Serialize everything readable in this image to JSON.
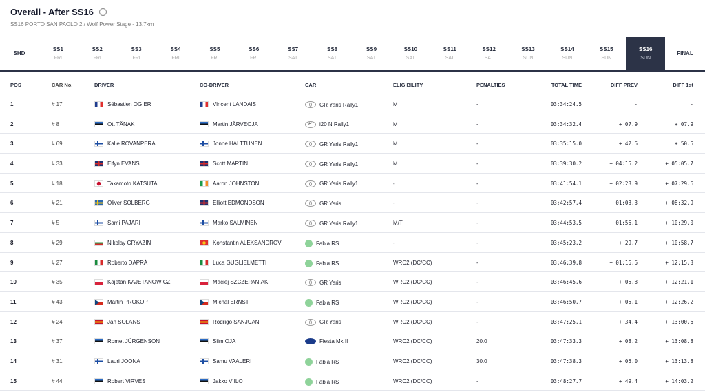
{
  "header": {
    "title": "Overall - After SS16",
    "subtitle": "SS16 PORTO SAN PAOLO 2 / Wolf Power Stage - 13.7km"
  },
  "stages": [
    {
      "n": "SHD",
      "d": ""
    },
    {
      "n": "SS1",
      "d": "FRI"
    },
    {
      "n": "SS2",
      "d": "FRI"
    },
    {
      "n": "SS3",
      "d": "FRI"
    },
    {
      "n": "SS4",
      "d": "FRI"
    },
    {
      "n": "SS5",
      "d": "FRI"
    },
    {
      "n": "SS6",
      "d": "FRI"
    },
    {
      "n": "SS7",
      "d": "SAT"
    },
    {
      "n": "SS8",
      "d": "SAT"
    },
    {
      "n": "SS9",
      "d": "SAT"
    },
    {
      "n": "SS10",
      "d": "SAT"
    },
    {
      "n": "SS11",
      "d": "SAT"
    },
    {
      "n": "SS12",
      "d": "SAT"
    },
    {
      "n": "SS13",
      "d": "SUN"
    },
    {
      "n": "SS14",
      "d": "SUN"
    },
    {
      "n": "SS15",
      "d": "SUN"
    },
    {
      "n": "SS16",
      "d": "SUN",
      "active": true
    },
    {
      "n": "FINAL",
      "d": ""
    }
  ],
  "columns": {
    "pos": "POS",
    "carno": "CAR No.",
    "driver": "DRIVER",
    "codriver": "CO-DRIVER",
    "car": "CAR",
    "elig": "ELIGIBILITY",
    "pen": "PENALTIES",
    "total": "TOTAL TIME",
    "dprev": "DIFF PREV",
    "dfirst": "DIFF 1st"
  },
  "rows": [
    {
      "pos": "1",
      "carno": "# 17",
      "driver": "Sébastien OGIER",
      "dflag": "fr",
      "codriver": "Vincent LANDAIS",
      "cflag": "fr",
      "car": "GR Yaris Rally1",
      "logo": "toyota",
      "elig": "M",
      "pen": "-",
      "total": "03:34:24.5",
      "dprev": "-",
      "dfirst": "-"
    },
    {
      "pos": "2",
      "carno": "# 8",
      "driver": "Ott TÄNAK",
      "dflag": "ee",
      "codriver": "Martin JÄRVEOJA",
      "cflag": "ee",
      "car": "i20 N Rally1",
      "logo": "hyundai",
      "elig": "M",
      "pen": "-",
      "total": "03:34:32.4",
      "dprev": "+ 07.9",
      "dfirst": "+ 07.9"
    },
    {
      "pos": "3",
      "carno": "# 69",
      "driver": "Kalle ROVANPERÄ",
      "dflag": "fi",
      "codriver": "Jonne HALTTUNEN",
      "cflag": "fi",
      "car": "GR Yaris Rally1",
      "logo": "toyota",
      "elig": "M",
      "pen": "-",
      "total": "03:35:15.0",
      "dprev": "+ 42.6",
      "dfirst": "+ 50.5"
    },
    {
      "pos": "4",
      "carno": "# 33",
      "driver": "Elfyn EVANS",
      "dflag": "gb",
      "codriver": "Scott MARTIN",
      "cflag": "gb",
      "car": "GR Yaris Rally1",
      "logo": "toyota",
      "elig": "M",
      "pen": "-",
      "total": "03:39:30.2",
      "dprev": "+ 04:15.2",
      "dfirst": "+ 05:05.7"
    },
    {
      "pos": "5",
      "carno": "# 18",
      "driver": "Takamoto KATSUTA",
      "dflag": "jp",
      "codriver": "Aaron JOHNSTON",
      "cflag": "ie",
      "car": "GR Yaris Rally1",
      "logo": "toyota",
      "elig": "-",
      "pen": "-",
      "total": "03:41:54.1",
      "dprev": "+ 02:23.9",
      "dfirst": "+ 07:29.6"
    },
    {
      "pos": "6",
      "carno": "# 21",
      "driver": "Oliver SOLBERG",
      "dflag": "se",
      "codriver": "Elliott EDMONDSON",
      "cflag": "gb",
      "car": "GR Yaris",
      "logo": "toyota",
      "elig": "-",
      "pen": "-",
      "total": "03:42:57.4",
      "dprev": "+ 01:03.3",
      "dfirst": "+ 08:32.9"
    },
    {
      "pos": "7",
      "carno": "# 5",
      "driver": "Sami PAJARI",
      "dflag": "fi",
      "codriver": "Marko SALMINEN",
      "cflag": "fi",
      "car": "GR Yaris Rally1",
      "logo": "toyota",
      "elig": "M/T",
      "pen": "-",
      "total": "03:44:53.5",
      "dprev": "+ 01:56.1",
      "dfirst": "+ 10:29.0"
    },
    {
      "pos": "8",
      "carno": "# 29",
      "driver": "Nikolay GRYAZIN",
      "dflag": "bg",
      "codriver": "Konstantin ALEKSANDROV",
      "cflag": "kg",
      "car": "Fabia RS",
      "logo": "skoda",
      "elig": "-",
      "pen": "-",
      "total": "03:45:23.2",
      "dprev": "+ 29.7",
      "dfirst": "+ 10:58.7"
    },
    {
      "pos": "9",
      "carno": "# 27",
      "driver": "Roberto DAPRÀ",
      "dflag": "it",
      "codriver": "Luca GUGLIELMETTI",
      "cflag": "it",
      "car": "Fabia RS",
      "logo": "skoda",
      "elig": "WRC2 (DC/CC)",
      "pen": "-",
      "total": "03:46:39.8",
      "dprev": "+ 01:16.6",
      "dfirst": "+ 12:15.3"
    },
    {
      "pos": "10",
      "carno": "# 35",
      "driver": "Kajetan KAJETANOWICZ",
      "dflag": "pl",
      "codriver": "Maciej SZCZEPANIAK",
      "cflag": "pl",
      "car": "GR Yaris",
      "logo": "toyota",
      "elig": "WRC2 (DC/CC)",
      "pen": "-",
      "total": "03:46:45.6",
      "dprev": "+ 05.8",
      "dfirst": "+ 12:21.1"
    },
    {
      "pos": "11",
      "carno": "# 43",
      "driver": "Martin PROKOP",
      "dflag": "cz",
      "codriver": "Michal ERNST",
      "cflag": "cz",
      "car": "Fabia RS",
      "logo": "skoda",
      "elig": "WRC2 (DC/CC)",
      "pen": "-",
      "total": "03:46:50.7",
      "dprev": "+ 05.1",
      "dfirst": "+ 12:26.2"
    },
    {
      "pos": "12",
      "carno": "# 24",
      "driver": "Jan SOLANS",
      "dflag": "es",
      "codriver": "Rodrigo SANJUAN",
      "cflag": "es",
      "car": "GR Yaris",
      "logo": "toyota",
      "elig": "WRC2 (DC/CC)",
      "pen": "-",
      "total": "03:47:25.1",
      "dprev": "+ 34.4",
      "dfirst": "+ 13:00.6"
    },
    {
      "pos": "13",
      "carno": "# 37",
      "driver": "Romet JÜRGENSON",
      "dflag": "ee",
      "codriver": "Siim OJA",
      "cflag": "ee",
      "car": "Fiesta Mk II",
      "logo": "ford",
      "elig": "WRC2 (DC/CC)",
      "pen": "20.0",
      "total": "03:47:33.3",
      "dprev": "+ 08.2",
      "dfirst": "+ 13:08.8"
    },
    {
      "pos": "14",
      "carno": "# 31",
      "driver": "Lauri JOONA",
      "dflag": "fi",
      "codriver": "Samu VAALERI",
      "cflag": "fi",
      "car": "Fabia RS",
      "logo": "skoda",
      "elig": "WRC2 (DC/CC)",
      "pen": "30.0",
      "total": "03:47:38.3",
      "dprev": "+ 05.0",
      "dfirst": "+ 13:13.8"
    },
    {
      "pos": "15",
      "carno": "# 44",
      "driver": "Robert VIRVES",
      "dflag": "ee",
      "codriver": "Jakko VIILO",
      "cflag": "ee",
      "car": "Fabia RS",
      "logo": "skoda",
      "elig": "WRC2 (DC/CC)",
      "pen": "-",
      "total": "03:48:27.7",
      "dprev": "+ 49.4",
      "dfirst": "+ 14:03.2"
    }
  ]
}
